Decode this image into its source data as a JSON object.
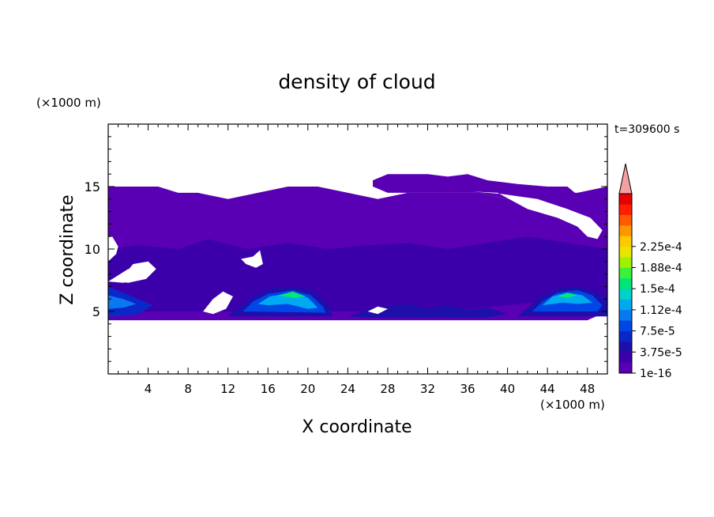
{
  "chart_data": {
    "type": "heatmap",
    "title": "density of cloud",
    "xlabel": "X coordinate",
    "ylabel": "Z coordinate",
    "x_unit_label": "(×1000 m)",
    "y_unit_label": "(×1000 m)",
    "time_label": "t=309600 s",
    "xlim": [
      0,
      50
    ],
    "ylim": [
      0,
      20
    ],
    "x_ticks": [
      {
        "value": 4,
        "label": "4"
      },
      {
        "value": 8,
        "label": "8"
      },
      {
        "value": 12,
        "label": "12"
      },
      {
        "value": 16,
        "label": "16"
      },
      {
        "value": 20,
        "label": "20"
      },
      {
        "value": 24,
        "label": "24"
      },
      {
        "value": 28,
        "label": "28"
      },
      {
        "value": 32,
        "label": "32"
      },
      {
        "value": 36,
        "label": "36"
      },
      {
        "value": 40,
        "label": "40"
      },
      {
        "value": 44,
        "label": "44"
      },
      {
        "value": 48,
        "label": "48"
      }
    ],
    "y_ticks": [
      {
        "value": 5,
        "label": "5"
      },
      {
        "value": 10,
        "label": "10"
      },
      {
        "value": 15,
        "label": "15"
      }
    ],
    "colorbar": {
      "levels": [
        "#5a00b4",
        "#3c00aa",
        "#1e0faa",
        "#0a28c8",
        "#0046e6",
        "#0a78f0",
        "#00aaf0",
        "#00d2c8",
        "#00e678",
        "#3cf03c",
        "#a0f000",
        "#e6e600",
        "#ffc800",
        "#ff9600",
        "#ff5a00",
        "#ff1e00",
        "#e60000"
      ],
      "over_color": "#f5a0a0",
      "tick_labels": [
        {
          "level": 0,
          "label": "1e-16"
        },
        {
          "level": 2,
          "label": "3.75e-5"
        },
        {
          "level": 4,
          "label": "7.5e-5"
        },
        {
          "level": 6,
          "label": "1.12e-4"
        },
        {
          "level": 8,
          "label": "1.5e-4"
        },
        {
          "level": 10,
          "label": "1.88e-4"
        },
        {
          "level": 12,
          "label": "2.25e-4"
        }
      ]
    },
    "regions": [
      {
        "name": "upper-cloud-layer",
        "level": 0,
        "points": [
          [
            0,
            11.5
          ],
          [
            0,
            15
          ],
          [
            3,
            15
          ],
          [
            5,
            15
          ],
          [
            7,
            14.5
          ],
          [
            9,
            14.5
          ],
          [
            12,
            14
          ],
          [
            15,
            14.5
          ],
          [
            18,
            15
          ],
          [
            21,
            15
          ],
          [
            24,
            14.5
          ],
          [
            27,
            14
          ],
          [
            30,
            14.5
          ],
          [
            32,
            14.5
          ],
          [
            34,
            14.5
          ],
          [
            37,
            14.5
          ],
          [
            40,
            14
          ],
          [
            42,
            13.5
          ],
          [
            44,
            14.5
          ],
          [
            47,
            14.5
          ],
          [
            50,
            15
          ],
          [
            50,
            11
          ],
          [
            50,
            5
          ],
          [
            48,
            4.3
          ],
          [
            44,
            4.3
          ],
          [
            41,
            4.3
          ],
          [
            38,
            4.3
          ],
          [
            34,
            4.3
          ],
          [
            30,
            4.3
          ],
          [
            26,
            4.3
          ],
          [
            22,
            4.3
          ],
          [
            18,
            4.3
          ],
          [
            14,
            4.3
          ],
          [
            11,
            4.3
          ],
          [
            8,
            4.3
          ],
          [
            5,
            4.3
          ],
          [
            2,
            4.3
          ],
          [
            0,
            4.3
          ],
          [
            0,
            7.5
          ],
          [
            1,
            8
          ],
          [
            0.5,
            9.5
          ],
          [
            0,
            10
          ],
          [
            0,
            11
          ]
        ]
      },
      {
        "name": "high-cloud-patch",
        "level": 0,
        "points": [
          [
            26.5,
            15.5
          ],
          [
            28,
            16
          ],
          [
            30,
            16
          ],
          [
            32,
            16
          ],
          [
            34,
            15.8
          ],
          [
            36,
            16
          ],
          [
            38,
            15.5
          ],
          [
            41,
            15.2
          ],
          [
            44,
            15
          ],
          [
            46,
            15
          ],
          [
            47.5,
            14
          ],
          [
            46,
            13.5
          ],
          [
            44,
            14
          ],
          [
            42,
            13.2
          ],
          [
            40,
            14
          ],
          [
            37,
            14.5
          ],
          [
            34,
            14.5
          ],
          [
            31,
            14.5
          ],
          [
            28,
            14.5
          ],
          [
            26.5,
            15
          ]
        ]
      },
      {
        "name": "mid-layer",
        "level": 1,
        "points": [
          [
            0,
            10
          ],
          [
            3,
            10.3
          ],
          [
            7,
            10
          ],
          [
            10,
            10.8
          ],
          [
            14,
            10
          ],
          [
            18,
            10.5
          ],
          [
            22,
            10
          ],
          [
            26,
            10.3
          ],
          [
            30,
            10.5
          ],
          [
            34,
            10
          ],
          [
            38,
            10.5
          ],
          [
            42,
            11
          ],
          [
            46,
            10.5
          ],
          [
            50,
            10
          ],
          [
            50,
            6
          ],
          [
            46,
            6
          ],
          [
            40,
            5.5
          ],
          [
            34,
            5
          ],
          [
            28,
            5
          ],
          [
            22,
            5
          ],
          [
            16,
            5
          ],
          [
            10,
            5
          ],
          [
            4,
            5
          ],
          [
            0,
            5
          ]
        ]
      },
      {
        "name": "left-cell",
        "level": 3,
        "points": [
          [
            0,
            4.6
          ],
          [
            0,
            7
          ],
          [
            1.5,
            6.5
          ],
          [
            3,
            6
          ],
          [
            4.5,
            5.5
          ],
          [
            3,
            4.8
          ],
          [
            1,
            4.6
          ]
        ]
      },
      {
        "name": "left-cell-core",
        "level": 5,
        "points": [
          [
            0,
            5.2
          ],
          [
            0,
            6.3
          ],
          [
            1.5,
            6
          ],
          [
            2.8,
            5.6
          ],
          [
            1.5,
            5.3
          ]
        ]
      },
      {
        "name": "cell-16-20",
        "level": 2,
        "points": [
          [
            12,
            4.6
          ],
          [
            13,
            5.3
          ],
          [
            14.5,
            6.2
          ],
          [
            16,
            6.8
          ],
          [
            18.5,
            7
          ],
          [
            20.5,
            6.6
          ],
          [
            22,
            5.6
          ],
          [
            22.5,
            4.6
          ]
        ]
      },
      {
        "name": "cell-16-20-mid",
        "level": 4,
        "points": [
          [
            13.5,
            5
          ],
          [
            14.5,
            5.8
          ],
          [
            16,
            6.4
          ],
          [
            18.5,
            6.7
          ],
          [
            20.3,
            6.3
          ],
          [
            21.5,
            5.4
          ],
          [
            21.8,
            4.9
          ]
        ]
      },
      {
        "name": "cell-16-20-inner",
        "level": 6,
        "points": [
          [
            15,
            5.6
          ],
          [
            16.2,
            6.2
          ],
          [
            18.5,
            6.5
          ],
          [
            20,
            6.1
          ],
          [
            21,
            5.3
          ],
          [
            20,
            5.2
          ],
          [
            18,
            5.6
          ],
          [
            16,
            5.5
          ]
        ]
      },
      {
        "name": "cell-16-20-core",
        "level": 8,
        "points": [
          [
            17,
            6.3
          ],
          [
            18.5,
            6.6
          ],
          [
            19.8,
            6.2
          ],
          [
            18.5,
            6.1
          ]
        ]
      },
      {
        "name": "cell-44",
        "level": 2,
        "points": [
          [
            41,
            4.6
          ],
          [
            42,
            5.3
          ],
          [
            43.5,
            6.3
          ],
          [
            45.5,
            6.9
          ],
          [
            47.5,
            6.9
          ],
          [
            49,
            6.5
          ],
          [
            50,
            6
          ],
          [
            50,
            4.6
          ]
        ]
      },
      {
        "name": "cell-44-mid",
        "level": 4,
        "points": [
          [
            42.5,
            5
          ],
          [
            43.5,
            5.8
          ],
          [
            45,
            6.5
          ],
          [
            47,
            6.7
          ],
          [
            48.5,
            6.3
          ],
          [
            49.5,
            5.5
          ],
          [
            49,
            5
          ]
        ]
      },
      {
        "name": "cell-44-inner",
        "level": 6,
        "points": [
          [
            43.5,
            5.5
          ],
          [
            44.5,
            6.2
          ],
          [
            46,
            6.5
          ],
          [
            47.5,
            6.3
          ],
          [
            48.5,
            5.7
          ],
          [
            47,
            5.6
          ],
          [
            45.5,
            5.7
          ]
        ]
      },
      {
        "name": "cell-44-core",
        "level": 8,
        "points": [
          [
            45,
            6.2
          ],
          [
            46,
            6.5
          ],
          [
            47,
            6.3
          ],
          [
            46,
            6.1
          ]
        ]
      },
      {
        "name": "middle-patch",
        "level": 2,
        "points": [
          [
            24,
            4.6
          ],
          [
            26,
            5.1
          ],
          [
            28,
            5.4
          ],
          [
            30,
            5.6
          ],
          [
            32,
            5.2
          ],
          [
            34,
            5.5
          ],
          [
            36,
            5.1
          ],
          [
            38,
            5.3
          ],
          [
            40,
            4.8
          ],
          [
            38,
            4.5
          ],
          [
            34,
            4.5
          ],
          [
            30,
            4.5
          ],
          [
            26,
            4.5
          ]
        ]
      }
    ],
    "holes": [
      {
        "name": "gap-left",
        "points": [
          [
            0,
            7.4
          ],
          [
            1,
            7.9
          ],
          [
            2,
            8.4
          ],
          [
            3,
            8
          ],
          [
            2.5,
            7.5
          ],
          [
            1.5,
            7.3
          ]
        ]
      },
      {
        "name": "gap-right",
        "points": [
          [
            0,
            9
          ],
          [
            0.8,
            9.6
          ],
          [
            1,
            10.2
          ],
          [
            0.4,
            11
          ],
          [
            0,
            11
          ]
        ]
      },
      {
        "name": "gap-5",
        "points": [
          [
            1,
            7.4
          ],
          [
            2.5,
            8.8
          ],
          [
            4,
            9
          ],
          [
            4.8,
            8.4
          ],
          [
            3.8,
            7.6
          ],
          [
            2,
            7.3
          ]
        ]
      },
      {
        "name": "gap-12",
        "points": [
          [
            9.5,
            5
          ],
          [
            10.5,
            6
          ],
          [
            11.5,
            6.6
          ],
          [
            12.5,
            6.2
          ],
          [
            11.8,
            5.2
          ],
          [
            10.5,
            4.8
          ]
        ]
      },
      {
        "name": "gap-14",
        "points": [
          [
            13.3,
            9.2
          ],
          [
            14.5,
            9.4
          ],
          [
            15.2,
            9.9
          ],
          [
            15.5,
            8.8
          ],
          [
            14.8,
            8.5
          ],
          [
            13.8,
            8.8
          ]
        ]
      },
      {
        "name": "gap-top-right",
        "points": [
          [
            36.5,
            14.6
          ],
          [
            39,
            14.5
          ],
          [
            42,
            13.2
          ],
          [
            45,
            12.5
          ],
          [
            47,
            11.8
          ],
          [
            48,
            11
          ],
          [
            49,
            10.8
          ],
          [
            49.5,
            11.5
          ],
          [
            48.3,
            12.5
          ],
          [
            46,
            13.2
          ],
          [
            43,
            14
          ],
          [
            39.5,
            14.4
          ]
        ]
      },
      {
        "name": "gap-mid",
        "points": [
          [
            26,
            5
          ],
          [
            27,
            5.4
          ],
          [
            28,
            5.2
          ],
          [
            27,
            4.8
          ]
        ]
      }
    ]
  }
}
